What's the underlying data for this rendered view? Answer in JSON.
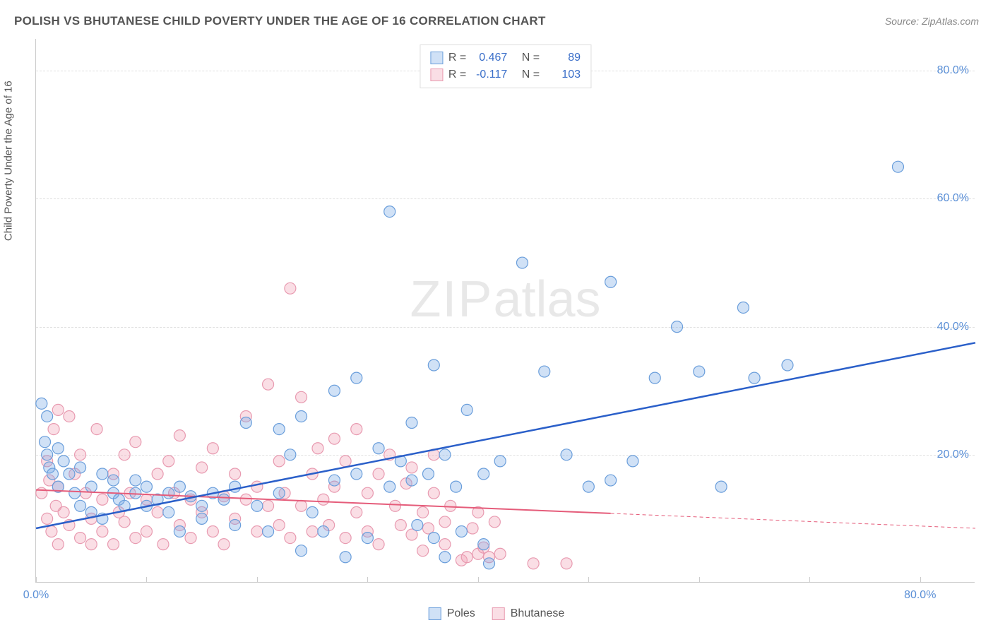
{
  "title": "POLISH VS BHUTANESE CHILD POVERTY UNDER THE AGE OF 16 CORRELATION CHART",
  "source": "Source: ZipAtlas.com",
  "y_axis_label": "Child Poverty Under the Age of 16",
  "watermark_zip": "ZIP",
  "watermark_atlas": "atlas",
  "chart": {
    "type": "scatter",
    "xlim": [
      0,
      85
    ],
    "ylim": [
      0,
      85
    ],
    "x_ticks": [
      0,
      10,
      20,
      30,
      40,
      50,
      60,
      70,
      80
    ],
    "y_gridlines": [
      20,
      40,
      60,
      80
    ],
    "x_tick_labels": {
      "0": "0.0%",
      "80": "80.0%"
    },
    "y_tick_labels": {
      "20": "20.0%",
      "40": "40.0%",
      "60": "60.0%",
      "80": "80.0%"
    },
    "background_color": "#ffffff",
    "grid_color": "#e0e0e0",
    "axis_color": "#cccccc",
    "tick_label_color": "#5a8fd6",
    "series": {
      "poles": {
        "label": "Poles",
        "color_fill": "rgba(120,170,230,0.35)",
        "color_stroke": "#6a9edb",
        "trend_color": "#2a5fc9",
        "trend_width": 2.5,
        "trend": {
          "x1": 0,
          "y1": 8.5,
          "x2": 85,
          "y2": 37.5,
          "solid_to_x": 85
        },
        "marker_r": 8,
        "R": "0.467",
        "N": "89",
        "points": [
          [
            0.5,
            28
          ],
          [
            0.8,
            22
          ],
          [
            1,
            26
          ],
          [
            1,
            20
          ],
          [
            1.2,
            18
          ],
          [
            1.5,
            17
          ],
          [
            2,
            21
          ],
          [
            2,
            15
          ],
          [
            2.5,
            19
          ],
          [
            3,
            17
          ],
          [
            3.5,
            14
          ],
          [
            4,
            18
          ],
          [
            4,
            12
          ],
          [
            5,
            15
          ],
          [
            5,
            11
          ],
          [
            6,
            17
          ],
          [
            6,
            10
          ],
          [
            7,
            14
          ],
          [
            7,
            16
          ],
          [
            7.5,
            13
          ],
          [
            8,
            12
          ],
          [
            9,
            14
          ],
          [
            9,
            16
          ],
          [
            10,
            15
          ],
          [
            10,
            12
          ],
          [
            11,
            13
          ],
          [
            12,
            14
          ],
          [
            12,
            11
          ],
          [
            13,
            15
          ],
          [
            13,
            8
          ],
          [
            14,
            13.5
          ],
          [
            15,
            12
          ],
          [
            15,
            10
          ],
          [
            16,
            14
          ],
          [
            17,
            13
          ],
          [
            18,
            9
          ],
          [
            18,
            15
          ],
          [
            19,
            25
          ],
          [
            20,
            12
          ],
          [
            21,
            8
          ],
          [
            22,
            24
          ],
          [
            22,
            14
          ],
          [
            23,
            20
          ],
          [
            24,
            5
          ],
          [
            24,
            26
          ],
          [
            25,
            11
          ],
          [
            26,
            8
          ],
          [
            27,
            30
          ],
          [
            27,
            16
          ],
          [
            28,
            4
          ],
          [
            29,
            32
          ],
          [
            29,
            17
          ],
          [
            30,
            7
          ],
          [
            31,
            21
          ],
          [
            32,
            15
          ],
          [
            32,
            58
          ],
          [
            33,
            19
          ],
          [
            34,
            25
          ],
          [
            34,
            16
          ],
          [
            34.5,
            9
          ],
          [
            35.5,
            17
          ],
          [
            36,
            34
          ],
          [
            36,
            7
          ],
          [
            37,
            20
          ],
          [
            37,
            4
          ],
          [
            38,
            15
          ],
          [
            38.5,
            8
          ],
          [
            39,
            27
          ],
          [
            40.5,
            17
          ],
          [
            40.5,
            6
          ],
          [
            41,
            3
          ],
          [
            42,
            19
          ],
          [
            44,
            50
          ],
          [
            46,
            33
          ],
          [
            48,
            20
          ],
          [
            50,
            15
          ],
          [
            52,
            16
          ],
          [
            52,
            47
          ],
          [
            54,
            19
          ],
          [
            56,
            32
          ],
          [
            58,
            40
          ],
          [
            60,
            33
          ],
          [
            62,
            15
          ],
          [
            64,
            43
          ],
          [
            65,
            32
          ],
          [
            68,
            34
          ],
          [
            78,
            65
          ]
        ]
      },
      "bhutanese": {
        "label": "Bhutanese",
        "color_fill": "rgba(240,160,180,0.35)",
        "color_stroke": "#e89ab0",
        "trend_color": "#e55c7a",
        "trend_width": 2,
        "trend": {
          "x1": 0,
          "y1": 14.5,
          "x2": 85,
          "y2": 8.5,
          "solid_to_x": 52
        },
        "marker_r": 8,
        "R": "-0.117",
        "N": "103",
        "points": [
          [
            0.5,
            14
          ],
          [
            1,
            19
          ],
          [
            1,
            10
          ],
          [
            1.2,
            16
          ],
          [
            1.4,
            8
          ],
          [
            1.6,
            24
          ],
          [
            1.8,
            12
          ],
          [
            2,
            15
          ],
          [
            2,
            6
          ],
          [
            2,
            27
          ],
          [
            2.5,
            11
          ],
          [
            3,
            26
          ],
          [
            3,
            9
          ],
          [
            3.5,
            17
          ],
          [
            4,
            7
          ],
          [
            4,
            20
          ],
          [
            4.5,
            14
          ],
          [
            5,
            10
          ],
          [
            5,
            6
          ],
          [
            5.5,
            24
          ],
          [
            6,
            13
          ],
          [
            6,
            8
          ],
          [
            7,
            17
          ],
          [
            7,
            6
          ],
          [
            7.5,
            11
          ],
          [
            8,
            20
          ],
          [
            8,
            9.5
          ],
          [
            8.5,
            14
          ],
          [
            9,
            7
          ],
          [
            9,
            22
          ],
          [
            10,
            13
          ],
          [
            10,
            8
          ],
          [
            11,
            17
          ],
          [
            11,
            11
          ],
          [
            11.5,
            6
          ],
          [
            12,
            19
          ],
          [
            12.5,
            14
          ],
          [
            13,
            9
          ],
          [
            13,
            23
          ],
          [
            14,
            13
          ],
          [
            14,
            7
          ],
          [
            15,
            18
          ],
          [
            15,
            11
          ],
          [
            16,
            8
          ],
          [
            16,
            21
          ],
          [
            17,
            13.5
          ],
          [
            17,
            6
          ],
          [
            18,
            17
          ],
          [
            18,
            10
          ],
          [
            19,
            13
          ],
          [
            19,
            26
          ],
          [
            20,
            8
          ],
          [
            20,
            15
          ],
          [
            21,
            12
          ],
          [
            21,
            31
          ],
          [
            22,
            9
          ],
          [
            22,
            19
          ],
          [
            22.5,
            14
          ],
          [
            23,
            7
          ],
          [
            23,
            46
          ],
          [
            24,
            29
          ],
          [
            24,
            12
          ],
          [
            25,
            17
          ],
          [
            25,
            8
          ],
          [
            25.5,
            21
          ],
          [
            26,
            13
          ],
          [
            26.5,
            9
          ],
          [
            27,
            22.5
          ],
          [
            27,
            15
          ],
          [
            28,
            7
          ],
          [
            28,
            19
          ],
          [
            29,
            11
          ],
          [
            29,
            24
          ],
          [
            30,
            14
          ],
          [
            30,
            8
          ],
          [
            31,
            17
          ],
          [
            31,
            6
          ],
          [
            32,
            20
          ],
          [
            32.5,
            12
          ],
          [
            33,
            9
          ],
          [
            33.5,
            15.5
          ],
          [
            34,
            7.5
          ],
          [
            34,
            18
          ],
          [
            35,
            11
          ],
          [
            35,
            5
          ],
          [
            35.5,
            8.5
          ],
          [
            36,
            14
          ],
          [
            36,
            20
          ],
          [
            37,
            9.5
          ],
          [
            37,
            6
          ],
          [
            37.5,
            12
          ],
          [
            38.5,
            3.5
          ],
          [
            39,
            4
          ],
          [
            39.5,
            8.5
          ],
          [
            40,
            4.5
          ],
          [
            40,
            11
          ],
          [
            40.5,
            5.5
          ],
          [
            41,
            4
          ],
          [
            41.5,
            9.5
          ],
          [
            42,
            4.5
          ],
          [
            45,
            3
          ],
          [
            48,
            3
          ]
        ]
      }
    }
  },
  "legend_top": {
    "r_label": "R =",
    "n_label": "N ="
  }
}
